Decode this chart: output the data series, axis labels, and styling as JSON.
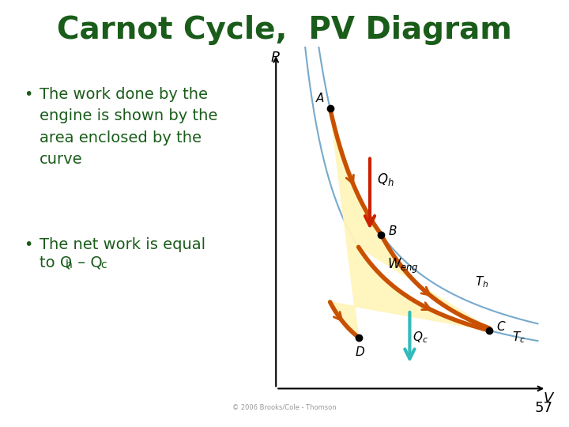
{
  "title": "Carnot Cycle,  PV Diagram",
  "title_color": "#1a5c1a",
  "title_fontsize": 28,
  "background_color": "#ffffff",
  "text_color": "#1a5c1a",
  "text_fontsize": 14,
  "slide_number": "57",
  "curve_color_hot": "#c85000",
  "curve_color_cold": "#6699cc",
  "fill_color": "#fff8cc",
  "arrow_red": "#cc2200",
  "arrow_teal": "#44bbbb",
  "point_color": "#000000",
  "copyright": "© 2006 Brooks/Cole - Thomson"
}
